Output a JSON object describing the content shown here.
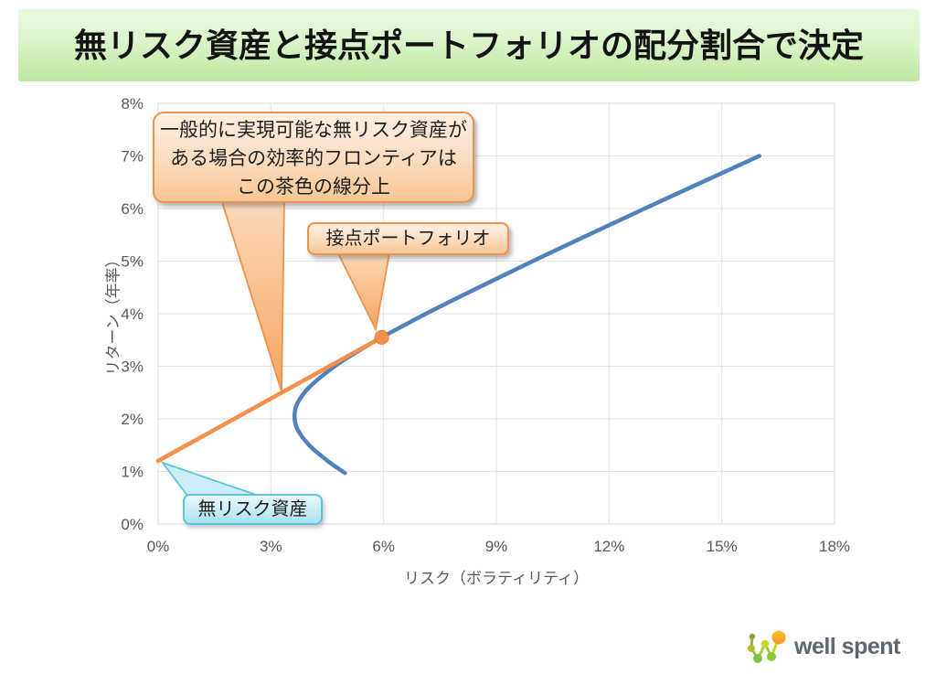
{
  "title": "無リスク資産と接点ポートフォリオの配分割合で決定",
  "chart_data": {
    "type": "line",
    "xlabel": "リスク（ボラティリティ）",
    "ylabel": "リターン（年率）",
    "xlim": [
      0,
      18
    ],
    "ylim": [
      0,
      8
    ],
    "x_tick_values": [
      0,
      3,
      6,
      9,
      12,
      15,
      18
    ],
    "x_tick_labels": [
      "0%",
      "3%",
      "6%",
      "9%",
      "12%",
      "15%",
      "18%"
    ],
    "y_tick_values": [
      0,
      1,
      2,
      3,
      4,
      5,
      6,
      7,
      8
    ],
    "y_tick_labels": [
      "0%",
      "1%",
      "2%",
      "3%",
      "4%",
      "5%",
      "6%",
      "7%",
      "8%"
    ],
    "grid": true,
    "legend": "none",
    "series": [
      {
        "name": "efficient-frontier",
        "color": "#4F81BD",
        "width": 4.5,
        "points": [
          [
            4.97,
            0.97
          ],
          [
            4.51,
            1.2
          ],
          [
            4.02,
            1.5
          ],
          [
            3.71,
            1.8
          ],
          [
            3.63,
            2.05
          ],
          [
            3.71,
            2.3
          ],
          [
            4.02,
            2.6
          ],
          [
            4.7,
            3.0
          ],
          [
            5.35,
            3.3
          ],
          [
            5.95,
            3.55
          ],
          [
            6.6,
            3.8
          ],
          [
            7.13,
            4.0
          ],
          [
            8.53,
            4.5
          ],
          [
            9.97,
            5.0
          ],
          [
            11.45,
            5.5
          ],
          [
            12.95,
            6.0
          ],
          [
            14.47,
            6.5
          ],
          [
            16.0,
            7.0
          ]
        ]
      },
      {
        "name": "capital-market-line",
        "color": "#F4904B",
        "width": 4.5,
        "points": [
          [
            0,
            1.2
          ],
          [
            5.95,
            3.55
          ]
        ]
      }
    ],
    "markers": [
      {
        "name": "tangency-point",
        "x": 5.95,
        "y": 3.55,
        "radius": 7.5,
        "color": "#F4904B",
        "stroke": "#ED7D31"
      }
    ]
  },
  "annotations": {
    "frontier_note": {
      "lines": [
        "一般的に実現可能な無リスク資産が",
        "ある場合の効率的フロンティアは",
        "この茶色の線分上"
      ]
    },
    "tangency": {
      "label": "接点ポートフォリオ"
    },
    "risk_free": {
      "label": "無リスク資産"
    }
  },
  "logo": {
    "text": "well spent"
  },
  "colors": {
    "frontier_blue": "#4F81BD",
    "cml_orange": "#F4904B",
    "callout_orange_border": "#F0914C",
    "callout_blue_border": "#5FC2DE",
    "banner_green": "#BCE89E",
    "gridline": "#E2E2E2",
    "axis_text": "#595959"
  }
}
